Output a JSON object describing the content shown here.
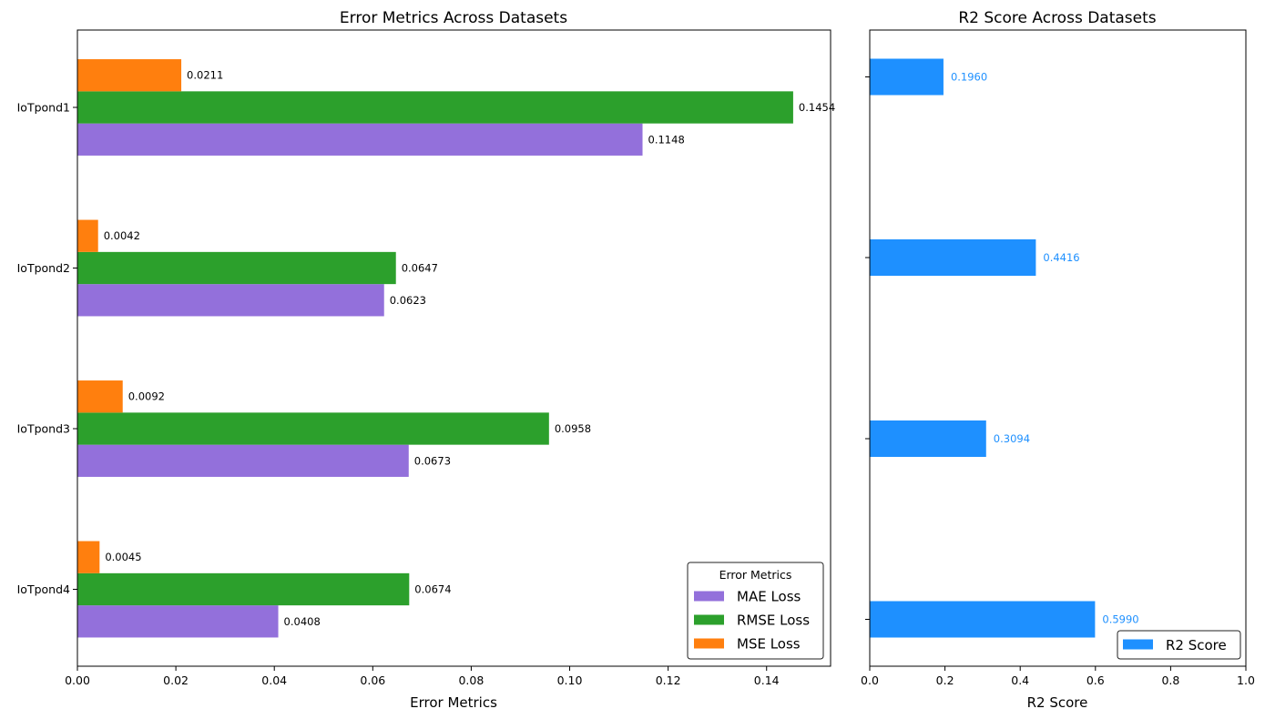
{
  "chart_data": [
    {
      "type": "bar",
      "orientation": "horizontal",
      "title": "Error Metrics Across Datasets",
      "xlabel": "Error Metrics",
      "ylabel": "",
      "xlim": [
        0,
        0.153
      ],
      "xticks": [
        "0.00",
        "0.02",
        "0.04",
        "0.06",
        "0.08",
        "0.10",
        "0.12",
        "0.14"
      ],
      "categories": [
        "IoTpond1",
        "IoTpond2",
        "IoTpond3",
        "IoTpond4"
      ],
      "highlighted_category": "IoTpond1",
      "highlight_color": "#ff0000",
      "series": [
        {
          "name": "MAE Loss",
          "color": "#9370db",
          "values": [
            0.1148,
            0.0623,
            0.0673,
            0.0408
          ],
          "labels": [
            "0.1148",
            "0.0623",
            "0.0673",
            "0.0408"
          ]
        },
        {
          "name": "RMSE Loss",
          "color": "#2ca02c",
          "values": [
            0.1454,
            0.0647,
            0.0958,
            0.0674
          ],
          "labels": [
            "0.1454",
            "0.0647",
            "0.0958",
            "0.0674"
          ]
        },
        {
          "name": "MSE Loss",
          "color": "#ff7f0e",
          "values": [
            0.0211,
            0.0042,
            0.0092,
            0.0045
          ],
          "labels": [
            "0.0211",
            "0.0042",
            "0.0092",
            "0.0045"
          ]
        }
      ],
      "legend": {
        "title": "Error Metrics",
        "placement": "lower-right"
      },
      "grid": false
    },
    {
      "type": "bar",
      "orientation": "horizontal",
      "title": "R2 Score Across Datasets",
      "xlabel": "R2 Score",
      "ylabel": "",
      "xlim": [
        0,
        1.0
      ],
      "xticks": [
        "0.0",
        "0.2",
        "0.4",
        "0.6",
        "0.8",
        "1.0"
      ],
      "categories": [
        "IoTpond1",
        "IoTpond2",
        "IoTpond3",
        "IoTpond4"
      ],
      "series": [
        {
          "name": "R2 Score",
          "color": "#1e90ff",
          "values": [
            0.196,
            0.4416,
            0.3094,
            0.599
          ],
          "labels": [
            "0.1960",
            "0.4416",
            "0.3094",
            "0.5990"
          ]
        }
      ],
      "legend": {
        "placement": "lower-right"
      },
      "grid": false
    }
  ]
}
